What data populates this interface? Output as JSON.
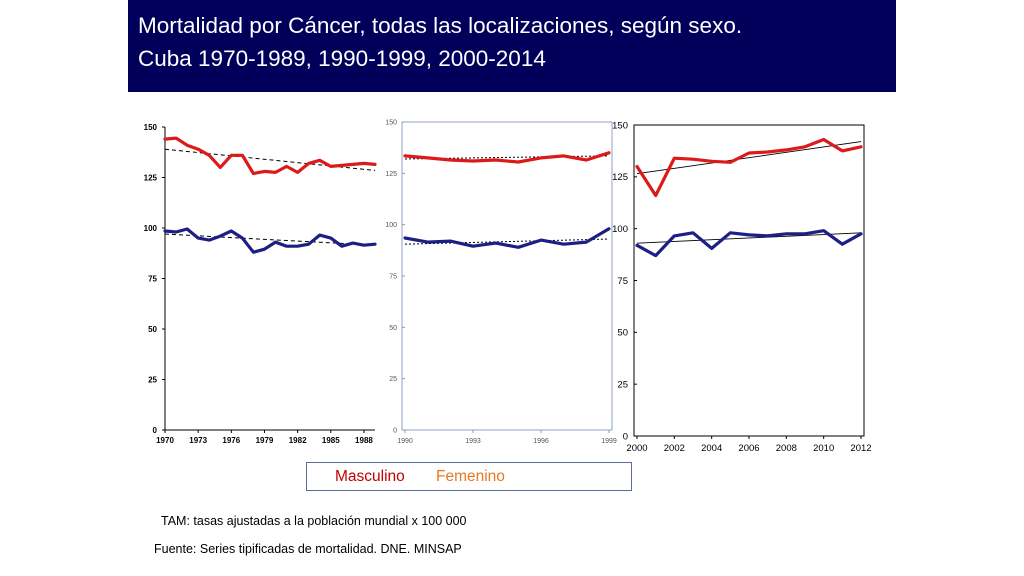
{
  "header": {
    "title_line1": "Mortalidad por Cáncer, todas las localizaciones, según sexo.",
    "title_line2": "Cuba 1970-1989, 1990-1999, 2000-2014"
  },
  "legend": {
    "masculino": "Masculino",
    "femenino": "Femenino"
  },
  "notes": {
    "tam": "TAM: tasas ajustadas a la población mundial x 100 000",
    "fuente": "Fuente: Series tipificadas de mortalidad. DNE. MINSAP"
  },
  "colors": {
    "title_bg": "#00005a",
    "male": "#dd1a1a",
    "female": "#1c1f86",
    "masculino_text": "#c00000",
    "femenino_text": "#e87722"
  },
  "chart_data": [
    {
      "type": "line",
      "title": "1970-1989",
      "xlim": [
        1970,
        1989
      ],
      "ylim": [
        0,
        150
      ],
      "yticks": [
        "0",
        "25",
        "50",
        "75",
        "100",
        "125",
        "150"
      ],
      "xticks": [
        {
          "value": 1970,
          "label": "1970"
        },
        {
          "value": 1973,
          "label": "1973"
        },
        {
          "value": 1976,
          "label": "1976"
        },
        {
          "value": 1979,
          "label": "1979"
        },
        {
          "value": 1982,
          "label": "1982"
        },
        {
          "value": 1985,
          "label": "1985"
        },
        {
          "value": 1988,
          "label": "1988"
        }
      ],
      "series": [
        {
          "name": "Masculino",
          "color": "#dd1a1a",
          "x": [
            1970,
            1971,
            1972,
            1973,
            1974,
            1975,
            1976,
            1977,
            1978,
            1979,
            1980,
            1981,
            1982,
            1983,
            1984,
            1985,
            1986,
            1987,
            1988,
            1989
          ],
          "values": [
            144,
            144.5,
            141,
            139,
            136,
            130,
            136,
            136,
            127,
            128,
            127.5,
            130.5,
            127.5,
            132,
            133.5,
            130.5,
            131,
            131.5,
            132,
            131.5
          ]
        },
        {
          "name": "Femenino",
          "color": "#1c1f86",
          "x": [
            1970,
            1971,
            1972,
            1973,
            1974,
            1975,
            1976,
            1977,
            1978,
            1979,
            1980,
            1981,
            1982,
            1983,
            1984,
            1985,
            1986,
            1987,
            1988,
            1989
          ],
          "values": [
            98.5,
            98,
            99.5,
            95,
            94,
            96,
            98.5,
            95,
            88,
            89.5,
            93,
            91,
            91,
            92,
            96.5,
            95,
            91,
            92.5,
            91.5,
            92
          ]
        }
      ],
      "trends": [
        {
          "series": "Masculino",
          "start": 139,
          "end": 128.5
        },
        {
          "series": "Femenino",
          "start": 97,
          "end": 91.5
        }
      ]
    },
    {
      "type": "line",
      "title": "1990-1999",
      "xlim": [
        1990,
        1999
      ],
      "ylim": [
        0,
        150
      ],
      "yticks": [
        "0",
        "25",
        "50",
        "75",
        "100",
        "125",
        "150"
      ],
      "xticks": [
        {
          "value": 1990,
          "label": "1990"
        },
        {
          "value": 1993,
          "label": "1993"
        },
        {
          "value": 1996,
          "label": "1996"
        },
        {
          "value": 1999,
          "label": "1999"
        }
      ],
      "series": [
        {
          "name": "Masculino",
          "color": "#dd1a1a",
          "x": [
            1990,
            1991,
            1992,
            1993,
            1994,
            1995,
            1996,
            1997,
            1998,
            1999
          ],
          "values": [
            133.5,
            132.5,
            131.5,
            131,
            131.5,
            130.5,
            132.5,
            133.5,
            131.5,
            135
          ]
        },
        {
          "name": "Femenino",
          "color": "#1c1f86",
          "x": [
            1990,
            1991,
            1992,
            1993,
            1994,
            1995,
            1996,
            1997,
            1998,
            1999
          ],
          "values": [
            93.5,
            91.5,
            92,
            89.5,
            91,
            89,
            92.5,
            90.5,
            91.5,
            98
          ]
        }
      ],
      "trends": [
        {
          "series": "Masculino",
          "start": 132,
          "end": 133.5
        },
        {
          "series": "Femenino",
          "start": 90.5,
          "end": 93
        }
      ]
    },
    {
      "type": "line",
      "title": "2000-2014",
      "xlim": [
        2000,
        2012
      ],
      "ylim": [
        0,
        150
      ],
      "yticks": [
        "0",
        "25",
        "50",
        "75",
        "100",
        "125",
        "150"
      ],
      "xticks": [
        {
          "value": 2000,
          "label": "2000"
        },
        {
          "value": 2002,
          "label": "2002"
        },
        {
          "value": 2004,
          "label": "2004"
        },
        {
          "value": 2006,
          "label": "2006"
        },
        {
          "value": 2008,
          "label": "2008"
        },
        {
          "value": 2010,
          "label": "2010"
        },
        {
          "value": 2012,
          "label": "2012"
        }
      ],
      "series": [
        {
          "name": "Masculino",
          "color": "#dd1a1a",
          "x": [
            2000,
            2001,
            2002,
            2003,
            2004,
            2005,
            2006,
            2007,
            2008,
            2009,
            2010,
            2011,
            2012
          ],
          "values": [
            130,
            116,
            134,
            133.5,
            132.5,
            132,
            136.5,
            137,
            138,
            139.5,
            143,
            137.5,
            139.5
          ]
        },
        {
          "name": "Femenino",
          "color": "#1c1f86",
          "x": [
            2000,
            2001,
            2002,
            2003,
            2004,
            2005,
            2006,
            2007,
            2008,
            2009,
            2010,
            2011,
            2012
          ],
          "values": [
            92,
            87,
            96.5,
            98,
            90.5,
            98,
            97,
            96.5,
            97.5,
            97.5,
            99,
            92.5,
            97.5
          ]
        }
      ],
      "trends": [
        {
          "series": "Masculino",
          "start": 126.5,
          "end": 142
        },
        {
          "series": "Femenino",
          "start": 93,
          "end": 98
        }
      ]
    }
  ]
}
